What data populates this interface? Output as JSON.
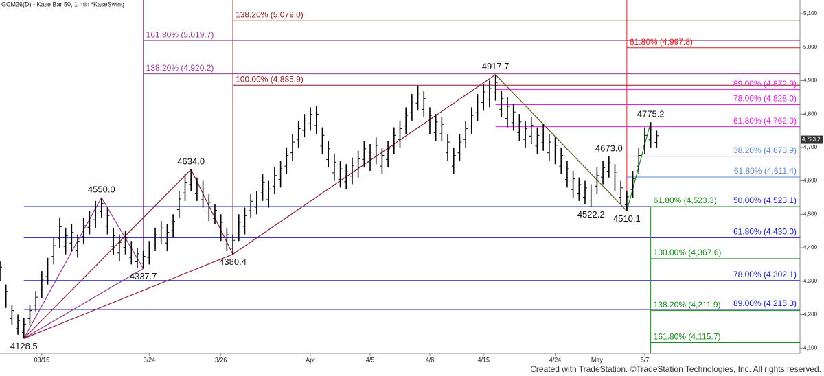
{
  "chart_data": {
    "type": "price-bars",
    "header": "GCM26(D) - Kase Bar 50, 1 min  *KaseSwing",
    "footer": "Created with TradeStation. ©TradeStation Technologies, Inc. All rights reserved.",
    "bar_color": "#000000",
    "xlim": [
      0,
      134
    ],
    "ylim": [
      4084,
      5141
    ],
    "xticks": [
      {
        "value": 7,
        "label": "03/15"
      },
      {
        "value": 25,
        "label": "3/24"
      },
      {
        "value": 37,
        "label": "3/26"
      },
      {
        "value": 52,
        "label": "Apr"
      },
      {
        "value": 62,
        "label": "4/5"
      },
      {
        "value": 72,
        "label": "4/8"
      },
      {
        "value": 81,
        "label": "4/15"
      },
      {
        "value": 93,
        "label": "4/24"
      },
      {
        "value": 100,
        "label": "May"
      },
      {
        "value": 108,
        "label": "5/7"
      }
    ],
    "yticks": [
      {
        "value": 4100,
        "label": "4,100"
      },
      {
        "value": 4200,
        "label": "4,200"
      },
      {
        "value": 4300,
        "label": "4,300"
      },
      {
        "value": 4400,
        "label": "4,400"
      },
      {
        "value": 4500,
        "label": "4,500"
      },
      {
        "value": 4600,
        "label": "4,600"
      },
      {
        "value": 4700,
        "label": "4,700"
      },
      {
        "value": 4800,
        "label": "4,800"
      },
      {
        "value": 4900,
        "label": "4,900"
      },
      {
        "value": 5000,
        "label": "5,000"
      },
      {
        "value": 5100,
        "label": "5,100"
      }
    ],
    "last_price": {
      "value": 4723.2,
      "label": "4,723.2"
    },
    "bars": {
      "high": [
        4360,
        4290,
        4230,
        4200,
        4190,
        4230,
        4270,
        4330,
        4370,
        4430,
        4490,
        4460,
        4470,
        4440,
        4490,
        4510,
        4540,
        4550,
        4520,
        4460,
        4440,
        4450,
        4420,
        4400,
        4390,
        4420,
        4460,
        4480,
        4470,
        4500,
        4570,
        4620,
        4634,
        4610,
        4600,
        4560,
        4530,
        4500,
        4460,
        4440,
        4500,
        4520,
        4560,
        4570,
        4620,
        4600,
        4640,
        4660,
        4700,
        4740,
        4780,
        4800,
        4820,
        4825,
        4760,
        4720,
        4680,
        4660,
        4650,
        4670,
        4690,
        4720,
        4710,
        4730,
        4700,
        4720,
        4760,
        4780,
        4820,
        4860,
        4885,
        4870,
        4820,
        4800,
        4790,
        4740,
        4700,
        4740,
        4780,
        4820,
        4860,
        4890,
        4900,
        4917.7,
        4870,
        4850,
        4830,
        4800,
        4780,
        4790,
        4760,
        4770,
        4740,
        4730,
        4700,
        4660,
        4630,
        4610,
        4600,
        4590,
        4640,
        4660,
        4673,
        4650,
        4600,
        4570,
        4630,
        4700,
        4760,
        4775.2,
        4750
      ],
      "low": [
        4300,
        4220,
        4170,
        4140,
        4128.5,
        4170,
        4210,
        4250,
        4290,
        4350,
        4400,
        4380,
        4390,
        4370,
        4410,
        4440,
        4460,
        4490,
        4440,
        4380,
        4360,
        4380,
        4350,
        4340,
        4337.7,
        4350,
        4390,
        4410,
        4390,
        4430,
        4490,
        4540,
        4570,
        4540,
        4520,
        4480,
        4470,
        4420,
        4390,
        4380.4,
        4420,
        4440,
        4490,
        4500,
        4540,
        4520,
        4560,
        4580,
        4620,
        4660,
        4700,
        4730,
        4750,
        4740,
        4680,
        4640,
        4600,
        4580,
        4575,
        4590,
        4610,
        4640,
        4630,
        4650,
        4620,
        4640,
        4680,
        4700,
        4740,
        4780,
        4810,
        4790,
        4740,
        4720,
        4720,
        4660,
        4620,
        4660,
        4700,
        4740,
        4780,
        4810,
        4820,
        4840,
        4790,
        4760,
        4750,
        4720,
        4700,
        4710,
        4680,
        4690,
        4660,
        4650,
        4620,
        4580,
        4550,
        4540,
        4530,
        4522.2,
        4560,
        4590,
        4610,
        4570,
        4530,
        4510.1,
        4550,
        4620,
        4680,
        4700,
        4700
      ]
    },
    "swings": {
      "x": [
        4,
        17,
        24,
        32,
        39,
        83,
        99,
        102,
        105,
        109
      ],
      "values": [
        4128.5,
        4550.0,
        4337.7,
        4634.0,
        4380.4,
        4917.7,
        4522.2,
        4673.0,
        4510.1,
        4775.2
      ],
      "value_labels": [
        "4128.5",
        "4550.0",
        "4337.7",
        "4634.0",
        "4380.4",
        "4917.7",
        "4522.2",
        "4673.0",
        "4510.1",
        "4775.2"
      ]
    },
    "waves": [
      {
        "color": "#8e3b8e",
        "from": 0,
        "to": 1
      },
      {
        "color": "#8e3b8e",
        "from": 1,
        "to": 2
      },
      {
        "color": "#8e3b8e",
        "from": 0,
        "to": 2
      },
      {
        "color": "#8b1c3a",
        "from": 0,
        "to": 3
      },
      {
        "color": "#8b1c3a",
        "from": 3,
        "to": 4
      },
      {
        "color": "#8b1c3a",
        "from": 0,
        "to": 4
      },
      {
        "color": "#8b1c3a",
        "from": 4,
        "to": 5
      },
      {
        "color": "#5a5a1e",
        "from": 5,
        "to": 8
      },
      {
        "color": "#1e8a1e",
        "from": 8,
        "to": 9
      }
    ],
    "fib_groups": [
      {
        "color": "#8e3b8e",
        "start": 2,
        "vertical": "up",
        "label_side": "left",
        "levels": [
          {
            "value": 5019.7,
            "label": "161.80% (5,019.7)"
          },
          {
            "value": 4920.2,
            "label": "138.20% (4,920.2)"
          }
        ]
      },
      {
        "color": "#8b1c1c",
        "start": 4,
        "vertical": "up",
        "label_side": "left",
        "levels": [
          {
            "value": 5079.0,
            "label": "138.20% (5,079.0)"
          },
          {
            "value": 4885.9,
            "label": "100.00% (4,885.9)"
          }
        ]
      },
      {
        "color": "#e02020",
        "start": 8,
        "vertical": "up",
        "label_side": "left",
        "levels": [
          {
            "value": 4997.8,
            "label": "61.80% (4,997.8)"
          }
        ]
      },
      {
        "color": "#e020e0",
        "start": 5,
        "vertical": "none",
        "label_side": "right",
        "levels": [
          {
            "value": 4872.9,
            "label": "89.00% (4,872.9)"
          },
          {
            "value": 4828.0,
            "label": "78.00% (4,828.0)"
          },
          {
            "value": 4762.0,
            "label": "61.80% (4,762.0)"
          }
        ]
      },
      {
        "color": "#5e86d6",
        "start": 8,
        "vertical": "none",
        "label_side": "right",
        "levels": [
          {
            "value": 4673.9,
            "label": "38.20% (4,673.9)"
          },
          {
            "value": 4611.4,
            "label": "61.80% (4,611.4)"
          }
        ]
      },
      {
        "color": "#1818c0",
        "start": 0,
        "vertical": "none",
        "label_side": "right",
        "levels": [
          {
            "value": 4523.1,
            "label": "50.00% (4,523.1)"
          },
          {
            "value": 4430.0,
            "label": "61.80% (4,430.0)"
          },
          {
            "value": 4302.1,
            "label": "78.00% (4,302.1)"
          },
          {
            "value": 4215.3,
            "label": "89.00% (4,215.3)"
          }
        ]
      },
      {
        "color": "#1e8a1e",
        "start": 9,
        "vertical": "down",
        "label_side": "left",
        "levels": [
          {
            "value": 4523.3,
            "label": "61.80% (4,523.3)"
          },
          {
            "value": 4367.6,
            "label": "100.00% (4,367.6)"
          },
          {
            "value": 4211.9,
            "label": "138.20% (4,211.9)"
          },
          {
            "value": 4115.7,
            "label": "161.80% (4,115.7)"
          }
        ]
      }
    ]
  }
}
